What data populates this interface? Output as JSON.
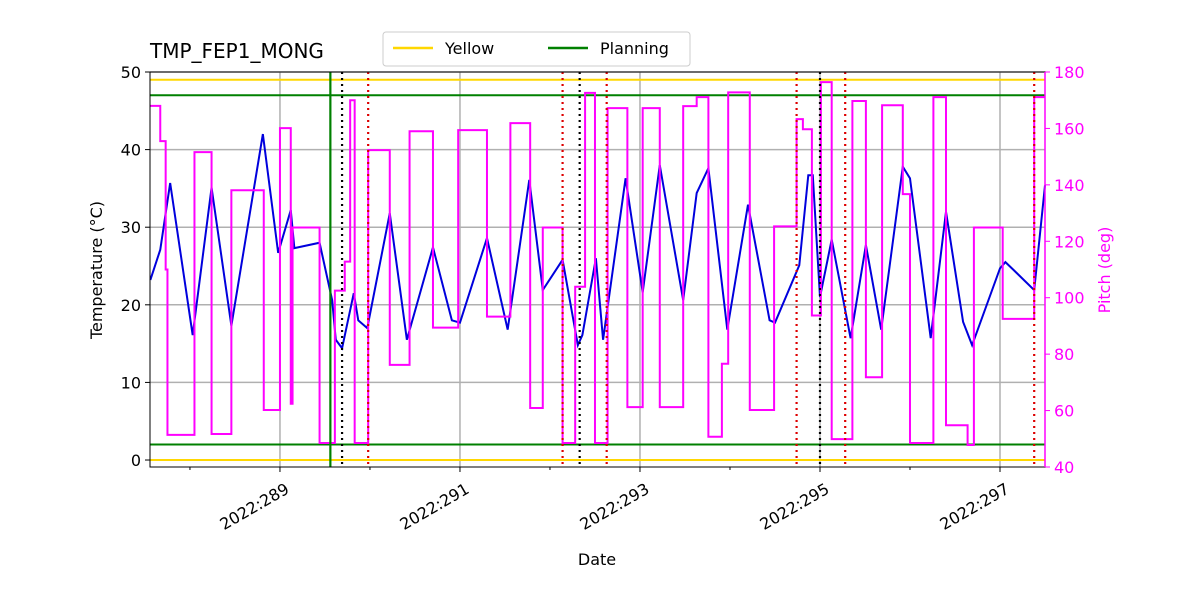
{
  "chart_data": {
    "type": "line",
    "title": "TMP_FEP1_MONG",
    "x_label": "Date",
    "y_label": "Temperature (°C)",
    "y2_label": "Pitch (deg)",
    "xlim": [
      287.556,
      297.5
    ],
    "ylim": [
      -0.9,
      50
    ],
    "y2lim": [
      40,
      180
    ],
    "xticks": [
      {
        "value": 289,
        "label": "2022:289"
      },
      {
        "value": 291,
        "label": "2022:291"
      },
      {
        "value": 293,
        "label": "2022:293"
      },
      {
        "value": 295,
        "label": "2022:295"
      },
      {
        "value": 297,
        "label": "2022:297"
      }
    ],
    "xminor": [
      288,
      290,
      292,
      294,
      296
    ],
    "yticks": [
      0,
      10,
      20,
      30,
      40,
      50
    ],
    "y2ticks": [
      40,
      60,
      80,
      100,
      120,
      140,
      160,
      180
    ],
    "grid": true,
    "y2_color": "#ff00ff",
    "series": [
      {
        "color": "#0000dd",
        "axis": "y",
        "x": [
          287.56,
          287.67,
          287.78,
          288.03,
          288.24,
          288.46,
          288.81,
          288.98,
          289.12,
          289.16,
          289.44,
          289.58,
          289.62,
          289.69,
          289.82,
          289.87,
          289.97,
          290.22,
          290.41,
          290.7,
          290.91,
          291.0,
          291.3,
          291.53,
          291.77,
          291.92,
          292.14,
          292.31,
          292.36,
          292.51,
          292.59,
          292.84,
          293.03,
          293.22,
          293.48,
          293.63,
          293.76,
          293.97,
          294.2,
          294.44,
          294.5,
          294.77,
          294.87,
          294.92,
          295.0,
          295.13,
          295.34,
          295.51,
          295.68,
          295.92,
          296.0,
          296.23,
          296.4,
          296.59,
          296.69,
          297.0,
          297.06,
          297.15,
          297.38,
          297.5
        ],
        "values": [
          23.2,
          27.1,
          35.7,
          16.1,
          35.1,
          17.3,
          42.0,
          26.7,
          32.2,
          27.3,
          28.0,
          20.6,
          15.5,
          14.4,
          21.5,
          18.0,
          17.0,
          31.8,
          15.5,
          27.4,
          18.0,
          17.7,
          28.6,
          16.8,
          36.1,
          21.9,
          25.8,
          14.8,
          16.1,
          26.0,
          15.5,
          36.3,
          21.6,
          38.0,
          20.6,
          34.4,
          37.6,
          16.8,
          32.9,
          18.0,
          17.7,
          25.1,
          36.7,
          36.7,
          21.0,
          28.4,
          15.7,
          27.7,
          16.8,
          37.8,
          36.3,
          15.7,
          32.0,
          17.8,
          14.8,
          24.7,
          25.5,
          24.5,
          21.9,
          35.4
        ]
      },
      {
        "color": "#ff00ff",
        "axis": "y2",
        "step": "post",
        "x": [
          287.56,
          287.67,
          287.73,
          287.75,
          288.05,
          288.24,
          288.46,
          288.82,
          289.0,
          289.12,
          289.14,
          289.44,
          289.61,
          289.72,
          289.78,
          289.83,
          289.98,
          290.22,
          290.44,
          290.7,
          290.98,
          291.3,
          291.56,
          291.78,
          291.92,
          292.14,
          292.28,
          292.39,
          292.5,
          292.64,
          292.86,
          293.03,
          293.22,
          293.48,
          293.63,
          293.76,
          293.91,
          293.98,
          294.22,
          294.49,
          294.74,
          294.81,
          294.91,
          295.01,
          295.13,
          295.36,
          295.51,
          295.69,
          295.92,
          296.0,
          296.26,
          296.4,
          296.64,
          296.71,
          297.03,
          297.38
        ],
        "values": [
          168,
          155.5,
          110,
          51.4,
          151.6,
          51.7,
          138.1,
          60.2,
          160.1,
          62.4,
          124.9,
          48.5,
          102.5,
          112.8,
          170,
          48.5,
          152.3,
          76.2,
          159,
          89.4,
          159.4,
          93.3,
          161.9,
          60.9,
          124.9,
          48.5,
          103.9,
          172.6,
          48.5,
          167.2,
          61.2,
          167.2,
          61.2,
          167.9,
          171.1,
          50.7,
          76.6,
          172.8,
          60.2,
          125.3,
          163.3,
          159.7,
          93.7,
          176.4,
          49.9,
          169.7,
          71.8,
          168.2,
          136.7,
          48.5,
          171.1,
          54.8,
          47.8,
          124.9,
          92.5,
          171.1
        ]
      }
    ],
    "hlines": [
      {
        "name": "Yellow",
        "color": "#ffd700",
        "values": [
          49,
          0
        ]
      },
      {
        "name": "Planning",
        "color": "#008000",
        "values": [
          47,
          2
        ]
      }
    ],
    "vlines": [
      {
        "color": "#008000",
        "style": "solid",
        "x": [
          289.56
        ]
      },
      {
        "color": "#000000",
        "style": "dotted",
        "x": [
          289.69,
          292.33,
          295.0
        ]
      },
      {
        "color": "#dd0000",
        "style": "dotted",
        "x": [
          289.98,
          292.14,
          292.63,
          294.74,
          295.28,
          297.38
        ]
      }
    ]
  }
}
